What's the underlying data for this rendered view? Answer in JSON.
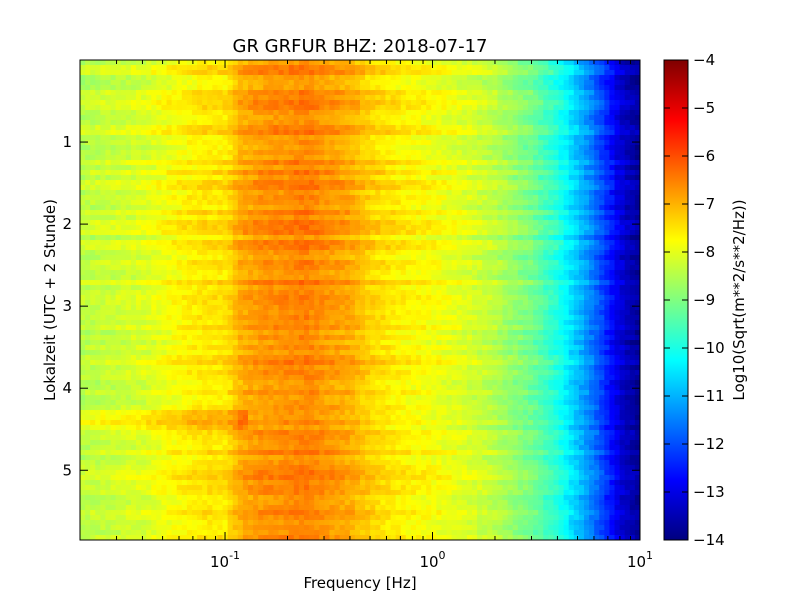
{
  "chart_data": {
    "type": "heatmap",
    "title": "GR GRFUR BHZ: 2018-07-17",
    "xlabel": "Frequency [Hz]",
    "ylabel": "Lokalzeit (UTC + 2 Stunde)",
    "x_scale": "log",
    "x_range": [
      0.02,
      10
    ],
    "y_range": [
      0,
      5.85
    ],
    "y_inverted": true,
    "x_ticks": [
      {
        "value": 0.1,
        "base": "10",
        "exp": "-1"
      },
      {
        "value": 1,
        "base": "10",
        "exp": "0"
      },
      {
        "value": 10,
        "base": "10",
        "exp": "1"
      }
    ],
    "y_ticks": [
      {
        "value": 1,
        "label": "1"
      },
      {
        "value": 2,
        "label": "2"
      },
      {
        "value": 3,
        "label": "3"
      },
      {
        "value": 4,
        "label": "4"
      },
      {
        "value": 5,
        "label": "5"
      }
    ],
    "colorbar": {
      "label": "Log10(Sqrt(m**2/s**2/Hz))",
      "range": [
        -14,
        -4
      ],
      "colormap": "jet",
      "ticks": [
        {
          "value": -4,
          "label": "−4"
        },
        {
          "value": -5,
          "label": "−5"
        },
        {
          "value": -6,
          "label": "−6"
        },
        {
          "value": -7,
          "label": "−7"
        },
        {
          "value": -8,
          "label": "−8"
        },
        {
          "value": -9,
          "label": "−9"
        },
        {
          "value": -10,
          "label": "−10"
        },
        {
          "value": -11,
          "label": "−11"
        },
        {
          "value": -12,
          "label": "−12"
        },
        {
          "value": -13,
          "label": "−13"
        },
        {
          "value": -14,
          "label": "−14"
        }
      ]
    },
    "spectrum": {
      "frequency": [
        0.02,
        0.04,
        0.06,
        0.08,
        0.1,
        0.12,
        0.15,
        0.2,
        0.25,
        0.3,
        0.4,
        0.5,
        0.7,
        1,
        1.5,
        2,
        3,
        4,
        5,
        6,
        7,
        8,
        9,
        10
      ],
      "level": [
        -8.4,
        -8.1,
        -7.7,
        -7.5,
        -7.5,
        -6.9,
        -6.7,
        -6.6,
        -6.5,
        -6.7,
        -6.9,
        -7.3,
        -7.6,
        -7.8,
        -8.1,
        -8.4,
        -9.1,
        -9.9,
        -10.8,
        -11.6,
        -12.4,
        -13.1,
        -13.5,
        -13.7
      ]
    },
    "event": {
      "time_range": [
        4.25,
        4.5
      ],
      "frequency_range": [
        0.02,
        0.13
      ],
      "level_offset": 0.6
    }
  }
}
